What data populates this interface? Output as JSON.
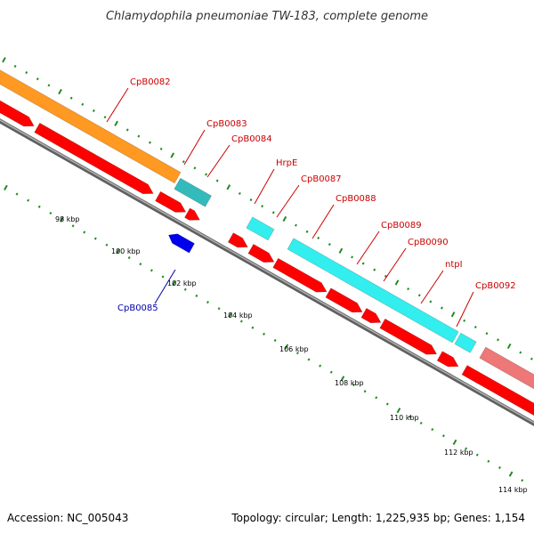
{
  "title": "Chlamydophila pneumoniae TW-183, complete genome",
  "footer": {
    "accession": "Accession: NC_005043",
    "summary": "Topology: circular; Length: 1,225,935 bp; Genes: 1,154"
  },
  "colors": {
    "backbone": "#808080",
    "ticks": "#228B22",
    "label_forward": "#cc0000",
    "label_reverse": "#0000aa",
    "orange": "#ff9922",
    "teal": "#33bbbb",
    "cyan": "#33eeee",
    "red": "#ff0000",
    "blue": "#0000ee",
    "pink": "#ee7777"
  },
  "kbp_labels": [
    "98 kbp",
    "100 kbp",
    "102 kbp",
    "104 kbp",
    "106 kbp",
    "108 kbp",
    "110 kbp",
    "112 kbp",
    "114 kbp"
  ],
  "gene_labels": [
    {
      "text": "CpB0082",
      "strand": "forward"
    },
    {
      "text": "CpB0083",
      "strand": "forward"
    },
    {
      "text": "CpB0084",
      "strand": "forward"
    },
    {
      "text": "HrpE",
      "strand": "forward"
    },
    {
      "text": "CpB0087",
      "strand": "forward"
    },
    {
      "text": "CpB0088",
      "strand": "forward"
    },
    {
      "text": "CpB0089",
      "strand": "forward"
    },
    {
      "text": "CpB0090",
      "strand": "forward"
    },
    {
      "text": "ntpI",
      "strand": "forward"
    },
    {
      "text": "CpB0092",
      "strand": "forward"
    },
    {
      "text": "CpB0085",
      "strand": "reverse"
    }
  ]
}
